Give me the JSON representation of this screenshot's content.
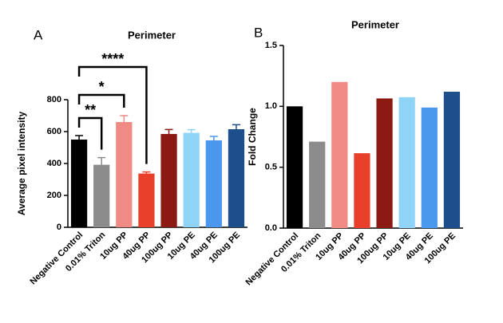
{
  "chart_data": [
    {
      "type": "bar",
      "panel_label": "A",
      "title": "Perimeter",
      "y_label": "Average pixel intensity",
      "categories": [
        "Negative Control",
        "0.01% Triton",
        "10ug PP",
        "40ug PP",
        "100ug PP",
        "10ug PE",
        "40ug PE",
        "100ug PE"
      ],
      "values": [
        550,
        392,
        660,
        337,
        585,
        592,
        545,
        615
      ],
      "errors": [
        25,
        45,
        40,
        10,
        28,
        20,
        25,
        28
      ],
      "colors": [
        "#000000",
        "#8c8c8c",
        "#f08a84",
        "#e8402a",
        "#8b1a12",
        "#8fd3f7",
        "#4a97ee",
        "#1f4e8c"
      ],
      "ylim": [
        0,
        800
      ],
      "yticks": [
        0,
        200,
        400,
        600,
        800
      ],
      "annotations": [
        {
          "label": "**",
          "from": "Negative Control",
          "to": "0.01% Triton"
        },
        {
          "label": "*",
          "from": "Negative Control",
          "to": "10ug PP"
        },
        {
          "label": "****",
          "from": "Negative Control",
          "to": "40ug PP"
        }
      ]
    },
    {
      "type": "bar",
      "panel_label": "B",
      "title": "Perimeter",
      "y_label": "Fold Change",
      "categories": [
        "Negative Control",
        "0.01% Triton",
        "10ug PP",
        "40ug PP",
        "100ug PP",
        "10ug PE",
        "40ug PE",
        "100ug PE"
      ],
      "values": [
        1.0,
        0.71,
        1.2,
        0.615,
        1.065,
        1.075,
        0.99,
        1.12
      ],
      "colors": [
        "#000000",
        "#8c8c8c",
        "#f08a84",
        "#e8402a",
        "#8b1a12",
        "#8fd3f7",
        "#4a97ee",
        "#1f4e8c"
      ],
      "ylim": [
        0,
        1.5
      ],
      "yticks": [
        {
          "value": 0,
          "label": "0.0"
        },
        0.5,
        {
          "value": 1,
          "label": "1.0"
        },
        1.5
      ]
    }
  ]
}
